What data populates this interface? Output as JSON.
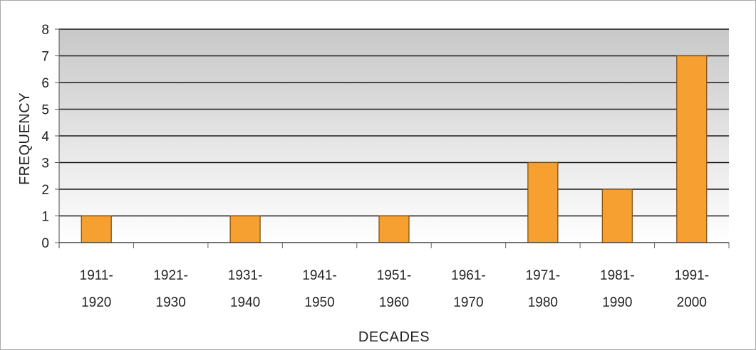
{
  "chart_data": {
    "type": "bar",
    "categories": [
      [
        "1911-",
        "1920"
      ],
      [
        "1921-",
        "1930"
      ],
      [
        "1931-",
        "1940"
      ],
      [
        "1941-",
        "1950"
      ],
      [
        "1951-",
        "1960"
      ],
      [
        "1961-",
        "1970"
      ],
      [
        "1971-",
        "1980"
      ],
      [
        "1981-",
        "1990"
      ],
      [
        "1991-",
        "2000"
      ]
    ],
    "values": [
      1,
      0,
      1,
      0,
      1,
      0,
      3,
      2,
      7
    ],
    "xlabel": "DECADES",
    "ylabel": "FREQUENCY",
    "ylim": [
      0,
      8
    ],
    "yticks": [
      "0",
      "1",
      "2",
      "3",
      "4",
      "5",
      "6",
      "7",
      "8"
    ],
    "grid": true,
    "legend": "none",
    "colors": {
      "bar_fill": "#f5a030",
      "bar_stroke": "#7a4a10",
      "plot_gradient_top": "#c8c8c8",
      "plot_gradient_bottom": "#ffffff",
      "grid": "#1a1a1a"
    }
  }
}
